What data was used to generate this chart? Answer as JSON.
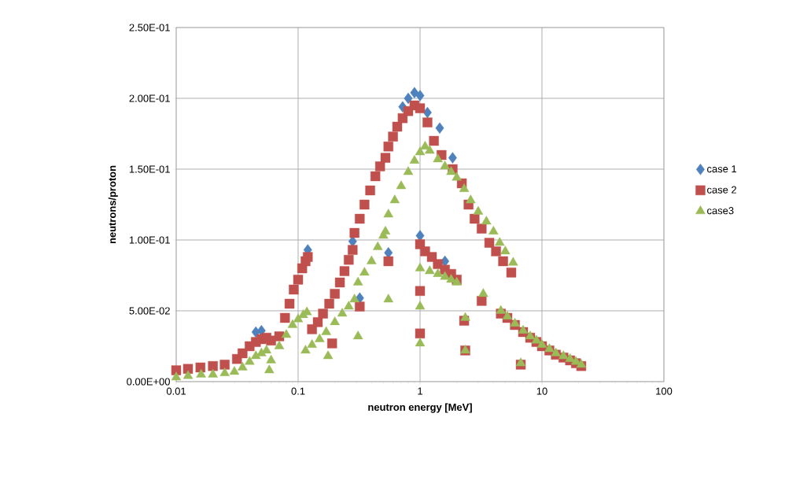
{
  "chart_data": {
    "type": "scatter",
    "xlabel": "neutron energy [MeV]",
    "ylabel": "neutrons/proton",
    "log": "x",
    "grid": true,
    "legend": "right",
    "xlim": [
      0.01,
      100
    ],
    "xticks": [
      0.01,
      0.1,
      1,
      10,
      100
    ],
    "ylim": [
      0,
      0.25
    ],
    "yticks": [
      {
        "value": 0,
        "label": "0.00E+00"
      },
      {
        "value": 0.05,
        "label": "5.00E-02"
      },
      {
        "value": 0.1,
        "label": "1.00E-01"
      },
      {
        "value": 0.15,
        "label": "1.50E-01"
      },
      {
        "value": 0.2,
        "label": "2.00E-01"
      },
      {
        "value": 0.25,
        "label": "2.50E-01"
      }
    ],
    "series": [
      {
        "name": "case 1",
        "color": "#4f81bd",
        "marker": "diamond",
        "x": [
          0.045,
          0.05,
          0.12,
          0.28,
          0.32,
          0.55,
          0.72,
          0.8,
          0.9,
          1.0,
          1.15,
          1.45,
          1.85,
          1.0,
          1.6
        ],
        "values": [
          0.035,
          0.036,
          0.093,
          0.099,
          0.059,
          0.091,
          0.194,
          0.2,
          0.204,
          0.202,
          0.19,
          0.179,
          0.158,
          0.103,
          0.085
        ]
      },
      {
        "name": "case 2",
        "color": "#c0504d",
        "marker": "square",
        "x": [
          0.01,
          0.0125,
          0.0158,
          0.02,
          0.025,
          0.0315,
          0.035,
          0.04,
          0.045,
          0.05,
          0.055,
          0.06,
          0.07,
          0.078,
          0.085,
          0.092,
          0.1,
          0.108,
          0.115,
          0.12,
          0.13,
          0.145,
          0.16,
          0.18,
          0.2,
          0.22,
          0.24,
          0.26,
          0.28,
          0.19,
          0.32,
          0.29,
          0.32,
          0.35,
          0.39,
          0.43,
          0.47,
          0.52,
          0.55,
          0.55,
          0.6,
          0.65,
          0.72,
          0.8,
          0.9,
          1.0,
          1.15,
          1.3,
          1.5,
          1.85,
          2.2,
          2.5,
          2.8,
          3.2,
          3.7,
          4.2,
          4.8,
          5.6,
          1.0,
          1.1,
          1.25,
          1.4,
          1.6,
          1.8,
          2.0,
          1.0,
          1.0,
          2.3,
          2.35,
          3.2,
          6.7,
          4.6,
          5.2,
          6,
          7,
          8,
          9,
          10,
          11.5,
          13,
          15,
          17,
          19,
          21
        ],
        "values": [
          0.008,
          0.009,
          0.01,
          0.011,
          0.012,
          0.016,
          0.02,
          0.025,
          0.028,
          0.03,
          0.031,
          0.029,
          0.032,
          0.045,
          0.055,
          0.065,
          0.072,
          0.08,
          0.085,
          0.088,
          0.037,
          0.042,
          0.048,
          0.055,
          0.062,
          0.07,
          0.078,
          0.086,
          0.093,
          0.027,
          0.053,
          0.105,
          0.115,
          0.125,
          0.135,
          0.145,
          0.152,
          0.158,
          0.085,
          0.166,
          0.173,
          0.18,
          0.186,
          0.191,
          0.195,
          0.193,
          0.183,
          0.17,
          0.16,
          0.15,
          0.14,
          0.125,
          0.115,
          0.108,
          0.098,
          0.092,
          0.085,
          0.077,
          0.097,
          0.092,
          0.088,
          0.083,
          0.079,
          0.076,
          0.072,
          0.064,
          0.034,
          0.043,
          0.022,
          0.057,
          0.012,
          0.048,
          0.045,
          0.04,
          0.035,
          0.031,
          0.028,
          0.025,
          0.022,
          0.019,
          0.017,
          0.015,
          0.013,
          0.011
        ]
      },
      {
        "name": "case3",
        "color": "#9bbb59",
        "marker": "triangle",
        "x": [
          0.01,
          0.0125,
          0.016,
          0.02,
          0.025,
          0.03,
          0.035,
          0.04,
          0.045,
          0.05,
          0.055,
          0.06,
          0.058,
          0.07,
          0.08,
          0.09,
          0.1,
          0.11,
          0.118,
          0.115,
          0.13,
          0.15,
          0.17,
          0.2,
          0.23,
          0.26,
          0.29,
          0.176,
          0.31,
          0.55,
          0.31,
          0.35,
          0.4,
          0.45,
          0.5,
          0.52,
          0.55,
          0.62,
          0.7,
          0.8,
          0.9,
          1.0,
          1.1,
          1.2,
          1.4,
          1.6,
          1.8,
          2.0,
          2.3,
          2.6,
          3.0,
          3.5,
          4.0,
          4.5,
          5.0,
          5.8,
          1.0,
          1.2,
          1.4,
          1.6,
          1.8,
          2.0,
          1.0,
          1.0,
          2.35,
          2.35,
          3.3,
          6.7,
          4.6,
          5.2,
          6,
          7,
          8,
          9,
          10,
          11.5,
          13,
          15,
          17,
          19,
          21
        ],
        "values": [
          0.003,
          0.004,
          0.005,
          0.005,
          0.006,
          0.007,
          0.01,
          0.014,
          0.018,
          0.02,
          0.022,
          0.015,
          0.008,
          0.025,
          0.033,
          0.04,
          0.044,
          0.047,
          0.049,
          0.022,
          0.026,
          0.03,
          0.035,
          0.042,
          0.048,
          0.053,
          0.058,
          0.018,
          0.032,
          0.058,
          0.07,
          0.077,
          0.085,
          0.095,
          0.103,
          0.106,
          0.118,
          0.128,
          0.138,
          0.148,
          0.156,
          0.162,
          0.166,
          0.163,
          0.157,
          0.152,
          0.148,
          0.144,
          0.136,
          0.128,
          0.12,
          0.113,
          0.106,
          0.098,
          0.092,
          0.084,
          0.08,
          0.078,
          0.076,
          0.074,
          0.072,
          0.07,
          0.053,
          0.027,
          0.045,
          0.022,
          0.062,
          0.013,
          0.05,
          0.046,
          0.041,
          0.036,
          0.032,
          0.029,
          0.026,
          0.023,
          0.02,
          0.018,
          0.016,
          0.014,
          0.012
        ]
      }
    ]
  }
}
